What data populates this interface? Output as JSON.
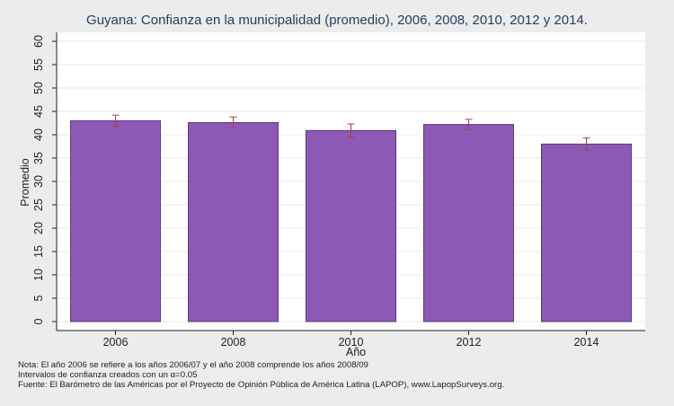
{
  "chart_data": {
    "type": "bar",
    "title": "Guyana: Confianza en la municipalidad (promedio), 2006, 2008, 2010, 2012 y 2014.",
    "xlabel": "Año",
    "ylabel": "Promedio",
    "categories": [
      "2006",
      "2008",
      "2010",
      "2012",
      "2014"
    ],
    "values": [
      43.0,
      42.6,
      40.9,
      42.2,
      38.0
    ],
    "error_low": [
      41.8,
      41.5,
      39.5,
      41.1,
      36.8
    ],
    "error_high": [
      44.2,
      43.8,
      42.3,
      43.3,
      39.3
    ],
    "ylim": [
      0,
      62
    ],
    "yticks": [
      0,
      5,
      10,
      15,
      20,
      25,
      30,
      35,
      40,
      45,
      50,
      55,
      60
    ],
    "grid": true,
    "bar_color": "#8c59b4",
    "bar_edge_color": "#5c3c7a",
    "error_color": "#a8404a"
  },
  "notes": {
    "line1": "Nota: El año 2006 se refiere a los años 2006/07 y el año 2008 comprende los años 2008/09",
    "line2": "Intervalos de confianza creados con un α=0.05",
    "line3": "Fuente: El Barómetro de las Américas por el Proyecto de Opinión Pública de América Latina (LAPOP), www.LapopSurveys.org."
  }
}
